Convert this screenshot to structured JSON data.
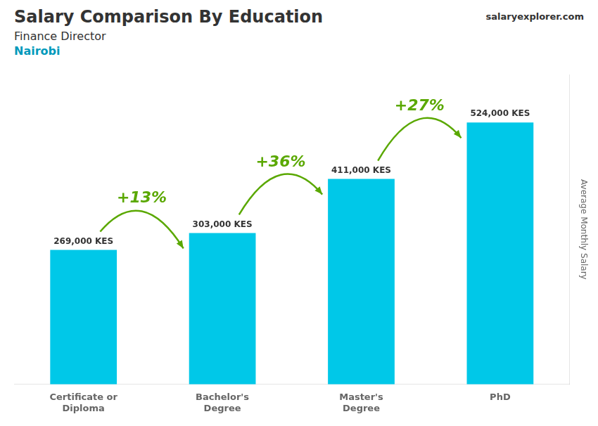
{
  "chart_data": {
    "type": "bar",
    "title": "Salary Comparison By Education",
    "subtitle": "Finance Director",
    "location": "Nairobi",
    "source": "salaryexplorer.com",
    "categories": [
      "Certificate or\nDiploma",
      "Bachelor's\nDegree",
      "Master's\nDegree",
      "PhD"
    ],
    "values": [
      269000,
      303000,
      411000,
      524000
    ],
    "value_labels": [
      "269,000 KES",
      "303,000 KES",
      "411,000 KES",
      "524,000 KES"
    ],
    "data_labels": true,
    "color": "#00c8e8",
    "ylabel": "Average Monthly Salary",
    "ylim": [
      0,
      620000
    ],
    "tick_labels": "x",
    "grid": false,
    "annotations": [
      "+13%",
      "+36%",
      "+27%"
    ]
  }
}
